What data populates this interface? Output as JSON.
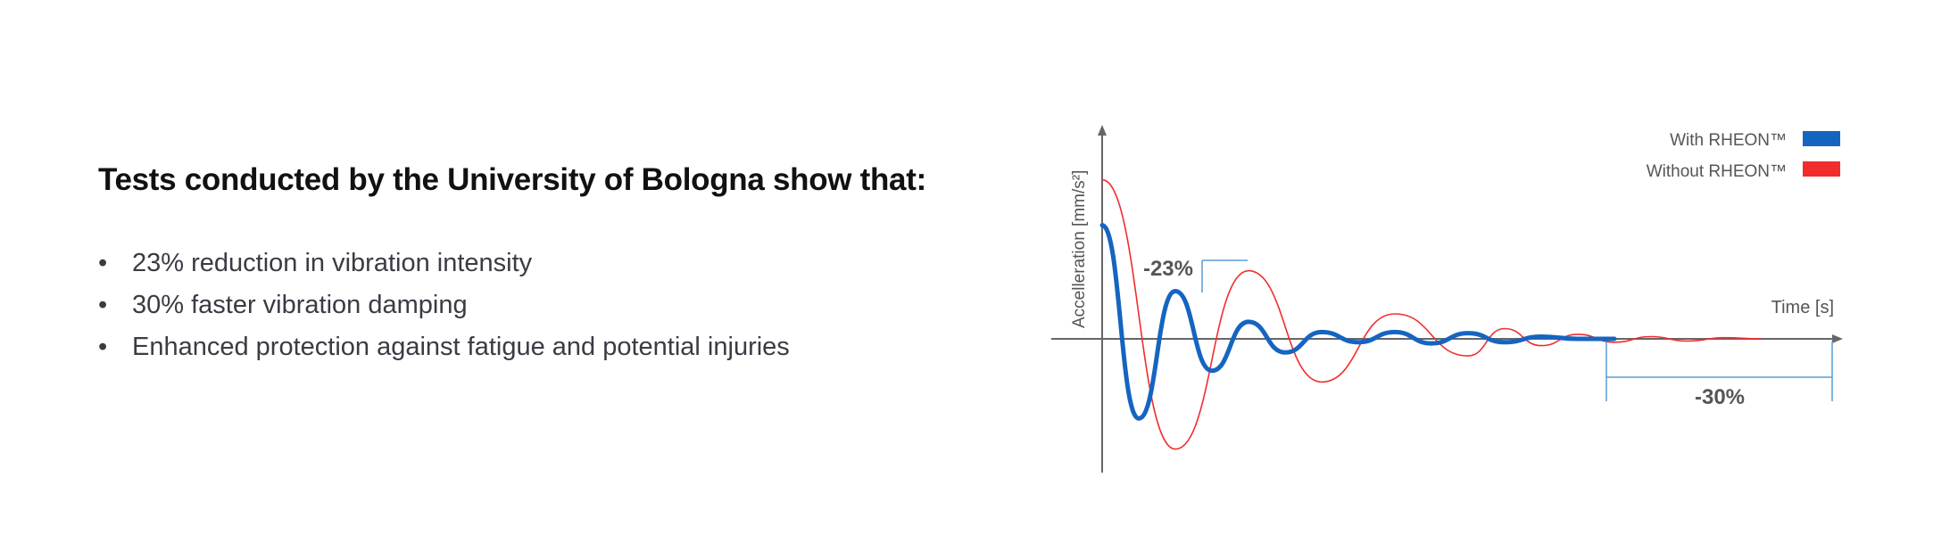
{
  "headline": "Tests conducted by the University of Bologna show that:",
  "bullets": [
    "23% reduction in vibration intensity",
    "30% faster vibration damping",
    "Enhanced protection against fatigue and potential injuries"
  ],
  "chart_data": {
    "type": "line",
    "xlabel": "Time [s]",
    "ylabel": "Accelleration [mm/s²]",
    "grid": false,
    "legend_position": "top-right",
    "xlim": [
      0,
      1
    ],
    "ylim": [
      -1,
      1.5
    ],
    "series": [
      {
        "name": "With RHEON™",
        "color": "#1565C0",
        "x": [
          0,
          0.05,
          0.1,
          0.15,
          0.2,
          0.25,
          0.3,
          0.35,
          0.4,
          0.45,
          0.5,
          0.55,
          0.6,
          0.65,
          0.7
        ],
        "y": [
          1.0,
          -0.7,
          0.42,
          -0.28,
          0.15,
          -0.12,
          0.06,
          -0.03,
          0.06,
          -0.04,
          0.05,
          -0.03,
          0.02,
          0.0,
          0.0
        ]
      },
      {
        "name": "Without RHEON™",
        "color": "#F22C2C",
        "x": [
          0,
          0.1,
          0.2,
          0.3,
          0.4,
          0.5,
          0.55,
          0.6,
          0.65,
          0.7,
          0.75,
          0.8,
          0.85,
          0.9
        ],
        "y": [
          1.4,
          -0.97,
          0.6,
          -0.38,
          0.22,
          -0.15,
          0.09,
          -0.06,
          0.04,
          -0.03,
          0.02,
          -0.02,
          0.01,
          0.0
        ]
      }
    ],
    "annotations": [
      {
        "text": "-23%"
      },
      {
        "text": "-30%"
      }
    ]
  }
}
